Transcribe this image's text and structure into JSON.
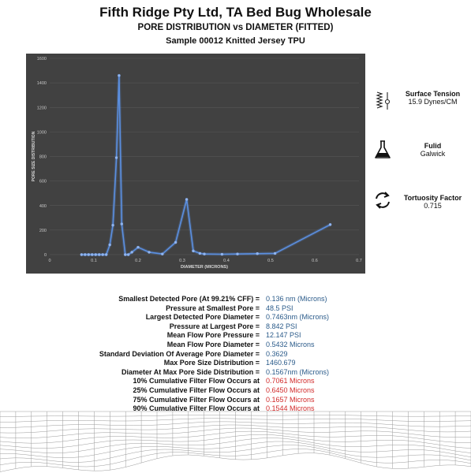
{
  "header": {
    "title": "Fifth Ridge Pty Ltd, TA Bed Bug Wholesale",
    "subtitle": "PORE DISTRIBUTION vs DIAMETER (FITTED)",
    "sample": "Sample 00012 Knitted Jersey TPU"
  },
  "chart_data": {
    "type": "line",
    "xlabel": "DIAMETER (MICRONS)",
    "ylabel": "PORE SIZE DISTRIBUTION",
    "xlim": [
      0,
      0.7
    ],
    "ylim": [
      0,
      1600
    ],
    "xticks": [
      "0",
      "0.1",
      "0.2",
      "0.3",
      "0.4",
      "0.5",
      "0.6",
      "0.7"
    ],
    "yticks": [
      "0",
      "200",
      "400",
      "600",
      "800",
      "1000",
      "1200",
      "1400",
      "1600"
    ],
    "grid": true,
    "line_color": "#5b8fe0",
    "x": [
      0.072,
      0.08,
      0.088,
      0.096,
      0.104,
      0.112,
      0.12,
      0.128,
      0.136,
      0.143,
      0.151,
      0.157,
      0.163,
      0.171,
      0.178,
      0.186,
      0.2,
      0.225,
      0.255,
      0.285,
      0.31,
      0.325,
      0.34,
      0.35,
      0.39,
      0.425,
      0.47,
      0.51,
      0.635
    ],
    "y": [
      0,
      0,
      0,
      0,
      0,
      0,
      0,
      0,
      80,
      240,
      790,
      1460,
      250,
      0,
      0,
      20,
      60,
      20,
      5,
      100,
      450,
      30,
      10,
      5,
      3,
      5,
      8,
      10,
      245
    ]
  },
  "properties": {
    "surface_tension_label": "Surface Tension",
    "surface_tension_value": "15.9 Dynes/CM",
    "fluid_label": "Fulid",
    "fluid_value": "Galwick",
    "tortuosity_label": "Tortuosity Factor",
    "tortuosity_value": "0.715"
  },
  "stats": [
    {
      "label": "Smallest Detected Pore (At 99.21% CFF) =",
      "value": "0.136 nm (Microns)",
      "color": "blue"
    },
    {
      "label": "Pressure at Smallest Pore =",
      "value": "48.5 PSI",
      "color": "blue"
    },
    {
      "label": "Largest  Detected Pore Diameter =",
      "value": "0.7463nm (Microns)",
      "color": "blue"
    },
    {
      "label": "Pressure at  Largest Pore =",
      "value": "8.842 PSI",
      "color": "blue"
    },
    {
      "label": "Mean Flow Pore Pressure =",
      "value": "12.147 PSI",
      "color": "blue"
    },
    {
      "label": "Mean Flow Pore Diameter =",
      "value": "0.5432 Microns",
      "color": "blue"
    },
    {
      "label": "Standard Deviation Of Average Pore Diameter =",
      "value": "0.3629",
      "color": "blue"
    },
    {
      "label": "Max Pore Size Distribution =",
      "value": "1460.679",
      "color": "blue"
    },
    {
      "label": "Diameter At Max Pore Side Distribution =",
      "value": "0.1567nm (Microns)",
      "color": "blue"
    },
    {
      "label": "10% Cumulative Filter Flow  Occurs  at",
      "value": "0.7061 Microns",
      "color": "red"
    },
    {
      "label": "25% Cumulative Filter Flow  Occurs  at",
      "value": "0.6450 Microns",
      "color": "red"
    },
    {
      "label": "75% Cumulative Filter Flow  Occurs  at",
      "value": "0.1657 Microns",
      "color": "red"
    },
    {
      "label": "90% Cumulative Filter Flow  Occurs  at",
      "value": "0.1544 Microns",
      "color": "red"
    }
  ]
}
